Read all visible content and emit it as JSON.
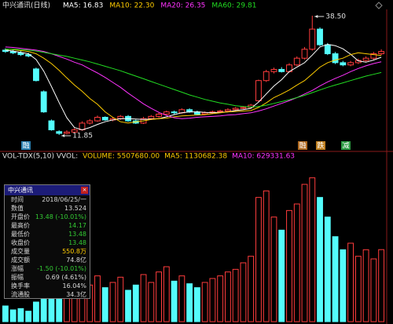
{
  "title": "中兴通讯(日线)",
  "chart_data": [
    {
      "type": "candlestick",
      "open": [
        30.8,
        30.5,
        30.2,
        29.8,
        26.6,
        21.5,
        15,
        12.6,
        12.2,
        12.5,
        13,
        14.5,
        15,
        15.8,
        15.2,
        15.5,
        16,
        15,
        14.5,
        15.5,
        16,
        16.5,
        17,
        16.8,
        17.5,
        17,
        16.5,
        16.8,
        17,
        17.2,
        17.5,
        17.8,
        18,
        19.5,
        24,
        26,
        26.5,
        26,
        27.5,
        29,
        31,
        35.5,
        32,
        30,
        28,
        27.5,
        28,
        28.5,
        29,
        30
      ],
      "high": [
        31.2,
        30.9,
        30.6,
        30.2,
        26.9,
        21.8,
        15.3,
        12.9,
        12.9,
        13.4,
        14.9,
        15.4,
        16.2,
        16,
        15.8,
        16.3,
        16.3,
        15.3,
        15.9,
        16.3,
        16.8,
        17.3,
        17.3,
        17.8,
        17.8,
        17.3,
        17.1,
        17.3,
        17.5,
        17.8,
        18.1,
        18.3,
        18.8,
        24.2,
        26.4,
        26.9,
        27,
        27.9,
        29.4,
        31.5,
        38.5,
        35.9,
        32.4,
        30.4,
        28.4,
        28.4,
        28.9,
        29.4,
        30.4,
        31
      ],
      "low": [
        30.2,
        29.9,
        29.5,
        29.2,
        23.8,
        16.8,
        12.8,
        11.85,
        12,
        12.3,
        12.8,
        14.2,
        14.8,
        15,
        14.9,
        15.2,
        14.8,
        14.3,
        14.3,
        15.2,
        15.7,
        16.2,
        16.5,
        16.6,
        16.8,
        16.3,
        16.3,
        16.6,
        16.8,
        17,
        17.3,
        17.6,
        17.8,
        19.3,
        23.7,
        25.6,
        25.8,
        25.8,
        27.2,
        28.7,
        30.7,
        31.7,
        29.7,
        27.7,
        27.2,
        27.2,
        27.7,
        28.2,
        28.7,
        29.7
      ],
      "close": [
        30.5,
        30.2,
        29.8,
        29.5,
        24,
        17,
        13,
        12.2,
        12.5,
        13,
        14.5,
        15,
        15.8,
        15.2,
        15.5,
        16,
        15,
        14.5,
        15.5,
        16,
        16.5,
        17,
        16.8,
        17.5,
        17,
        16.5,
        16.8,
        17,
        17.2,
        17.5,
        17.8,
        18,
        18.5,
        24,
        26,
        26.5,
        26,
        27.5,
        29,
        31,
        35.5,
        32,
        30,
        28,
        27.5,
        28,
        28.5,
        29,
        30,
        30.5
      ],
      "up_color": "#ff3c3c",
      "down_color": "#54fcfc",
      "ylim": [
        8.7,
        39.9
      ],
      "series": [
        {
          "name": "MA5: 16.83",
          "color": "#ffffff",
          "values": [
            30.8,
            30.6,
            30.3,
            30,
            28.7,
            26.1,
            22.7,
            19.1,
            15.7,
            13.5,
            13,
            13.5,
            14.2,
            14.8,
            15.2,
            15.5,
            15.5,
            15.4,
            15.3,
            15.4,
            15.5,
            15.9,
            16.4,
            16.8,
            17,
            17,
            16.9,
            16.8,
            16.9,
            17,
            17.3,
            17.5,
            17.8,
            19.2,
            21,
            22.8,
            24.2,
            26,
            27,
            28,
            29.7,
            31.5,
            32.1,
            31.8,
            31.1,
            29.9,
            28.4,
            28.1,
            28.6,
            29.2
          ]
        },
        {
          "name": "MA10: 22.30",
          "color": "#ffcc00",
          "values": [
            31,
            30.9,
            30.7,
            30.5,
            30,
            29,
            27.8,
            26.3,
            24.6,
            23,
            21.6,
            20,
            18.7,
            17,
            15.8,
            14.8,
            14.5,
            14.8,
            15,
            15.3,
            15.5,
            15.6,
            15.9,
            16.1,
            16.2,
            16.3,
            16.4,
            16.6,
            16.8,
            17,
            17.1,
            17.2,
            17.3,
            18,
            19,
            20.2,
            21,
            21.9,
            23,
            24,
            25.5,
            27,
            28,
            28.6,
            29,
            29.8,
            30.2,
            30,
            29.8,
            29.6
          ]
        },
        {
          "name": "MA20: 26.35",
          "color": "#ff33ff",
          "values": [
            31.5,
            31.4,
            31.2,
            31,
            30.8,
            30.5,
            30,
            29.4,
            28.8,
            28.1,
            27.5,
            26.6,
            25.7,
            24.7,
            23.6,
            22.5,
            21.2,
            20,
            18.8,
            17.8,
            16.9,
            16.2,
            15.7,
            15.5,
            15.6,
            15.8,
            15.9,
            16,
            16.1,
            16.3,
            16.4,
            16.6,
            16.8,
            17.2,
            17.7,
            18.3,
            18.9,
            19.5,
            20.2,
            21,
            21.8,
            22.8,
            23.7,
            24.5,
            25.2,
            26,
            26.7,
            27.3,
            27.8,
            28.2
          ]
        },
        {
          "name": "MA60: 29.81",
          "color": "#22dd22",
          "values": [
            31,
            31,
            30.9,
            30.8,
            30.6,
            30.3,
            30,
            29.7,
            29.4,
            29,
            28.6,
            28.2,
            27.7,
            27.2,
            26.7,
            26.2,
            25.6,
            25,
            24.4,
            23.8,
            23.2,
            22.6,
            22,
            21.4,
            20.8,
            20.3,
            19.8,
            19.4,
            19,
            18.7,
            18.4,
            18.2,
            18.1,
            18.2,
            18.5,
            18.9,
            19.3,
            19.7,
            20.2,
            20.7,
            21.3,
            21.9,
            22.5,
            23,
            23.5,
            24,
            24.5,
            25,
            25.4,
            25.8
          ]
        }
      ],
      "annotations": [
        {
          "value": 38.5,
          "label": "38.50"
        },
        {
          "value": 11.85,
          "label": "11.85"
        }
      ]
    },
    {
      "type": "bar",
      "header": [
        {
          "text": "VOL-TDX(5,10) VVOL:",
          "color": "#e0e0e0"
        },
        {
          "text": "VOLUME: 5507680.00",
          "color": "#ffcc00"
        },
        {
          "text": "MA5: 1130682.38",
          "color": "#ffcc00"
        },
        {
          "text": "MA10: 629331.63",
          "color": "#ff33ff"
        }
      ],
      "values": [
        1200000,
        900000,
        1000000,
        800000,
        1500000,
        2000000,
        3500000,
        4000000,
        3000000,
        2500000,
        3200000,
        2800000,
        3500000,
        2600000,
        3000000,
        3400000,
        2400000,
        2800000,
        3600000,
        3000000,
        3800000,
        4200000,
        3100000,
        3500000,
        2900000,
        2600000,
        3000000,
        3300000,
        3500000,
        3800000,
        4000000,
        4500000,
        5000000,
        9500000,
        10000000,
        8000000,
        7000000,
        8500000,
        9000000,
        10500000,
        11000000,
        9500000,
        8000000,
        6500000,
        5500000,
        6000000,
        5000000,
        5500000,
        4800000,
        5507680
      ],
      "ylim": [
        0,
        12000000
      ]
    }
  ],
  "markers": [
    {
      "label": "融",
      "color": "#2a7fb0"
    },
    {
      "label": "融",
      "color": "#b06a20"
    },
    {
      "label": "跌",
      "color": "#c08020"
    },
    {
      "label": "减",
      "color": "#2a9a40"
    }
  ],
  "info_panel": {
    "title": "中兴通讯",
    "rows": [
      {
        "label": "时间",
        "value": "2018/06/25/一",
        "color": "#d8d8d8"
      },
      {
        "label": "数值",
        "value": "13.524",
        "color": "#d8d8d8"
      },
      {
        "label": "开盘价",
        "value": "13.48 (-10.01%)",
        "color": "#33cc33"
      },
      {
        "label": "最高价",
        "value": "14.17",
        "color": "#33cc33"
      },
      {
        "label": "最低价",
        "value": "13.48",
        "color": "#33cc33"
      },
      {
        "label": "收盘价",
        "value": "13.48",
        "color": "#33cc33"
      },
      {
        "label": "成交量",
        "value": "550.8万",
        "color": "#ffcc00"
      },
      {
        "label": "成交额",
        "value": "74.8亿",
        "color": "#d8d8d8"
      },
      {
        "label": "涨幅",
        "value": "-1.50 (-10.01%)",
        "color": "#33cc33"
      },
      {
        "label": "振幅",
        "value": "0.69 (4.61%)",
        "color": "#d8d8d8"
      },
      {
        "label": "换手率",
        "value": "16.04%",
        "color": "#d8d8d8"
      },
      {
        "label": "流通股",
        "value": "34.3亿",
        "color": "#d8d8d8"
      }
    ]
  }
}
